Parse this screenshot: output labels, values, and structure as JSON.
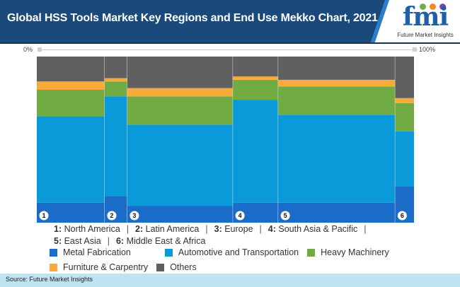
{
  "header": {
    "title": "Global HSS Tools Market Key Regions and End Use Mekko Chart, 2021",
    "logo_text": "fmi",
    "logo_subtext": "Future Market Insights"
  },
  "axis": {
    "left_label": "0%",
    "right_label": "100%"
  },
  "regions_legend": [
    {
      "num": "1:",
      "name": "North America"
    },
    {
      "num": "2:",
      "name": "Latin America"
    },
    {
      "num": "3:",
      "name": "Europe"
    },
    {
      "num": "4:",
      "name": "South Asia & Pacific"
    },
    {
      "num": "5:",
      "name": "East Asia"
    },
    {
      "num": "6:",
      "name": "Middle East & Africa"
    }
  ],
  "separator": "|",
  "chart_data": {
    "type": "mekko",
    "title": "Global HSS Tools Market Key Regions and End Use Mekko Chart, 2021",
    "x_axis_range": [
      "0%",
      "100%"
    ],
    "categories": [
      "1",
      "2",
      "3",
      "4",
      "5",
      "6"
    ],
    "category_names": [
      "North America",
      "Latin America",
      "Europe",
      "South Asia & Pacific",
      "East Asia",
      "Middle East & Africa"
    ],
    "column_widths_pct": [
      18,
      6,
      28,
      12,
      31,
      5
    ],
    "series": [
      {
        "name": "Metal Fabrication",
        "color": "#1b6cc8",
        "values": [
          12,
          16,
          10,
          12,
          12,
          22
        ]
      },
      {
        "name": "Automotive and Transportation",
        "color": "#0a9ad9",
        "values": [
          52,
          60,
          49,
          62,
          53,
          33
        ]
      },
      {
        "name": "Heavy Machinery",
        "color": "#72ab44",
        "values": [
          16,
          9,
          17,
          12,
          17,
          17
        ]
      },
      {
        "name": "Furniture & Carpentry",
        "color": "#f9ab3a",
        "values": [
          5,
          2,
          5,
          2,
          4,
          3
        ]
      },
      {
        "name": "Others",
        "color": "#606060",
        "values": [
          15,
          13,
          19,
          12,
          14,
          25
        ]
      }
    ],
    "legend_position": "bottom",
    "grid": false
  },
  "footer": {
    "source": "Source: Future Market Insights"
  },
  "colors": {
    "header_bg": "#1a4a7c",
    "footer_bg": "#bde4f0",
    "column_divider": "#e0e0e0"
  }
}
